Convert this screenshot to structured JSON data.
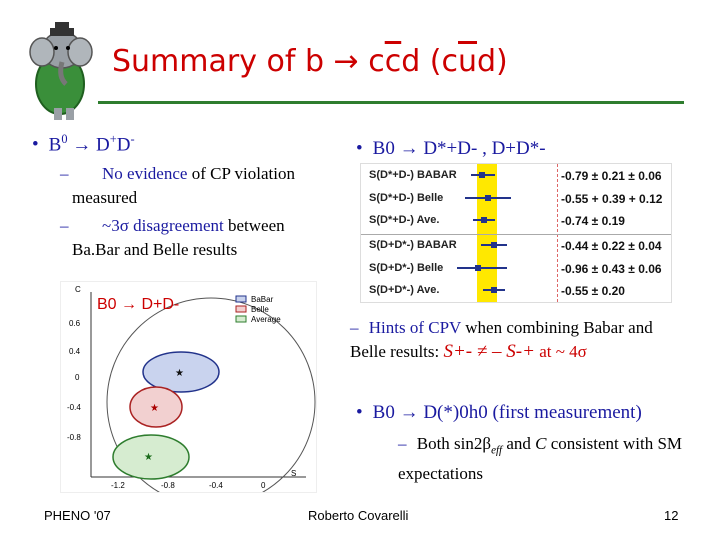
{
  "title": {
    "text_pre": "Summary of b → c",
    "c_bar": "c",
    "text_mid": "d (c",
    "u_bar": "u",
    "text_post": "d)"
  },
  "left": {
    "bullet_pre": "B",
    "bullet_sup0": "0",
    "bullet_arrow": " → D",
    "bullet_supplus": "+",
    "bullet_d": "D",
    "bullet_supminus": "-",
    "items": [
      {
        "a": "No evidence",
        "b": " of CP violation measured"
      },
      {
        "a": "~3σ disagreement",
        "b": " between Ba.Bar and Belle results"
      }
    ],
    "plot_label": "B0 → D+D-"
  },
  "right": {
    "bullet1": "B0 → D*+D- , D+D*-",
    "rows": [
      {
        "label": "S(D*+D-) BABAR",
        "value": "-0.79 ± 0.21 ± 0.06"
      },
      {
        "label": "S(D*+D-) Belle",
        "value": "-0.55 + 0.39 + 0.12"
      },
      {
        "label": "S(D*+D-) Ave.",
        "value": "-0.74 ± 0.19"
      },
      {
        "label": "S(D+D*-) BABAR",
        "value": "-0.44 ± 0.22 ± 0.04"
      },
      {
        "label": "S(D+D*-) Belle",
        "value": "-0.96 ± 0.43 ± 0.06"
      },
      {
        "label": "S(D+D*-) Ave.",
        "value": "-0.55 ± 0.20"
      }
    ],
    "hint_a": "Hints of CPV",
    "hint_b": " when combining Babar and Belle results: ",
    "hint_formula": "S+- ≠ – S-+",
    "hint_c": " at ~ 4σ",
    "bullet2": "B0 → D(*)0h0",
    "bullet2_tail": " (first measurement)",
    "sub2_pre": "Both sin2β",
    "sub2_eff": "eff",
    "sub2_mid": " and ",
    "sub2_c": "C",
    "sub2_post": " consistent with SM expectations"
  },
  "footer": {
    "left": "PHENO '07",
    "center": "Roberto Covarelli",
    "right": "12"
  },
  "chart_data": {
    "type": "scatter",
    "title": "",
    "xlabel": "S",
    "ylabel": "C",
    "x_ticks": [
      "-1.2",
      "-0.8",
      "-0.4",
      "0"
    ],
    "y_ticks": [
      "0.6",
      "0.4",
      "0",
      "-0.4",
      "-0.8"
    ],
    "legend": [
      "BaBar",
      "Belle",
      "Average"
    ],
    "legend_placement": "top-right",
    "points": [
      {
        "name": "BaBar",
        "x": -0.65,
        "y": -0.1
      },
      {
        "name": "Belle",
        "x": -0.9,
        "y": -0.4
      },
      {
        "name": "Average",
        "x": -1.05,
        "y": -0.95
      }
    ]
  }
}
